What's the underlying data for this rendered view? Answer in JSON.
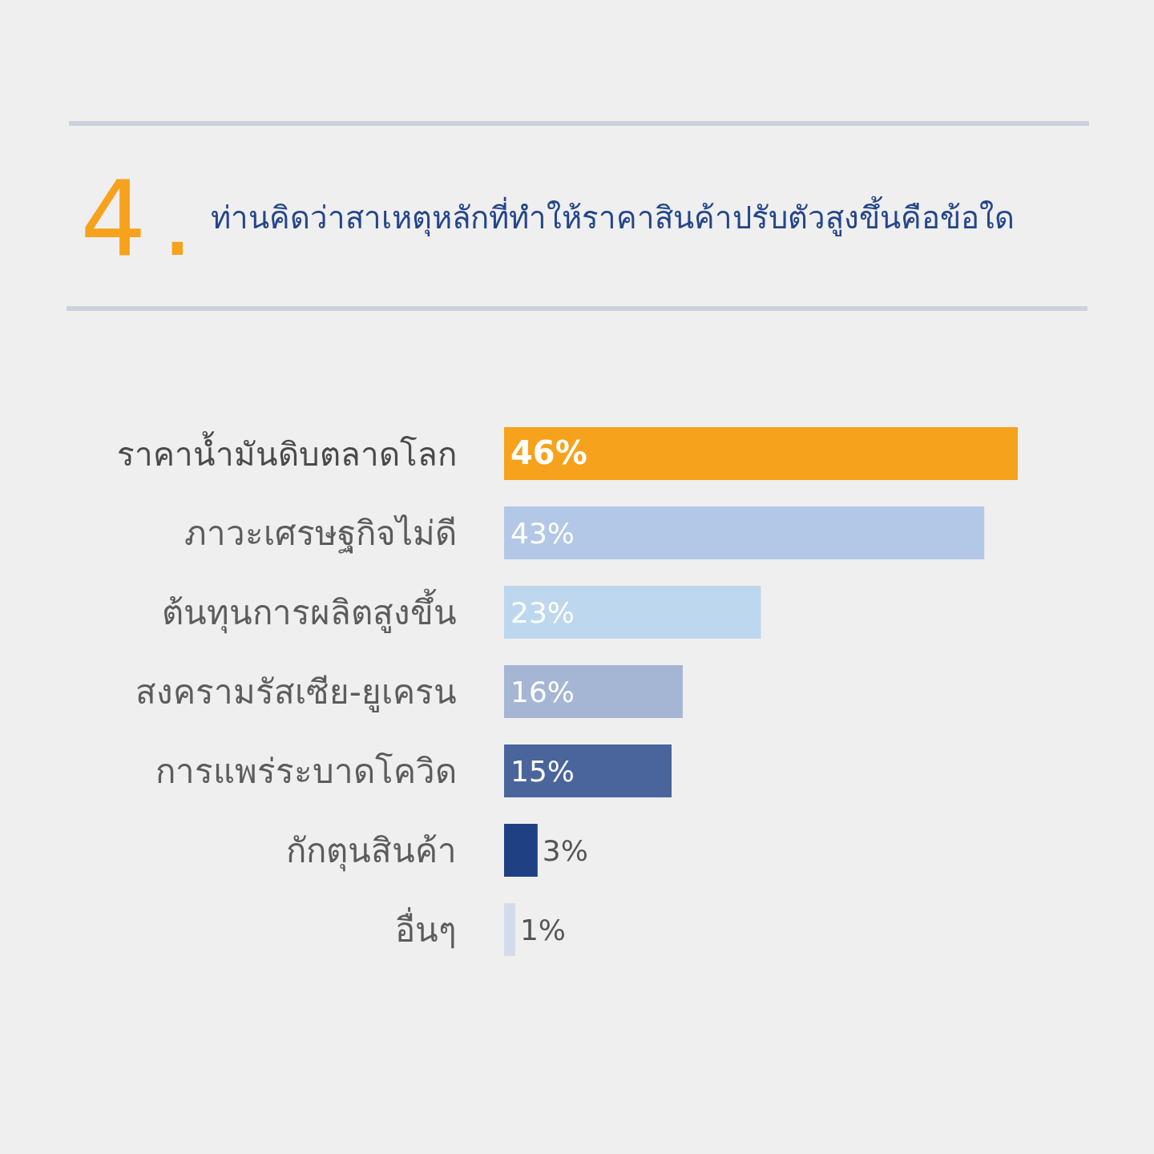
{
  "chart_data": {
    "type": "bar",
    "orientation": "horizontal",
    "title": "ท่านคิดว่าสาเหตุหลักที่ทำให้ราคาสินค้าปรับตัวสูงขึ้นคือข้อใด",
    "annotations": [
      "4."
    ],
    "categories": [
      "ราคาน้ำมันดิบตลาดโลก",
      "ภาวะเศรษฐกิจไม่ดี",
      "ต้นทุนการผลิตสูงขึ้น",
      "สงครามรัสเซีย-ยูเครน",
      "การแพร่ระบาดโควิด",
      "กักตุนสินค้า",
      "อื่นๆ"
    ],
    "values": [
      46,
      43,
      23,
      16,
      15,
      3,
      1
    ],
    "colors": [
      "#f7a21d",
      "#b3c8e6",
      "#bdd7ee",
      "#a5b6d4",
      "#4a659c",
      "#1f4083",
      "#d4dcec"
    ],
    "value_labels": [
      "46%",
      "43%",
      "23%",
      "16%",
      "15%",
      "3%",
      "1%"
    ]
  }
}
